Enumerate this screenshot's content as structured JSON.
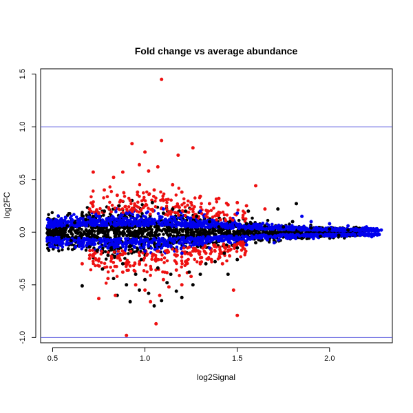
{
  "chart_data": {
    "type": "scatter",
    "title": "Fold change vs average abundance",
    "xlabel": "log2Signal",
    "ylabel": "log2FC",
    "xlim": [
      0.435,
      2.34
    ],
    "ylim": [
      -1.05,
      1.55
    ],
    "x_ticks": [
      0.5,
      1.0,
      1.5,
      2.0
    ],
    "x_tick_labels": [
      "0.5",
      "1.0",
      "1.5",
      "2.0"
    ],
    "y_ticks": [
      -1.0,
      -0.5,
      0.0,
      0.5,
      1.0,
      1.5
    ],
    "y_tick_labels": [
      "-1.0",
      "-0.5",
      "0.0",
      "0.5",
      "1.0",
      "1.5"
    ],
    "grid": false,
    "reference_lines": [
      {
        "y": 1.0,
        "color": "#5555dd"
      },
      {
        "y": -1.0,
        "color": "#5555dd"
      }
    ],
    "series": [
      {
        "color": "#000000",
        "points": [
          [
            0.48,
            0.01
          ],
          [
            0.5,
            -0.02
          ],
          [
            0.52,
            0.03
          ],
          [
            0.55,
            -0.05
          ],
          [
            0.58,
            0.06
          ],
          [
            0.6,
            -0.08
          ],
          [
            0.62,
            0.09
          ],
          [
            0.65,
            -0.1
          ],
          [
            0.66,
            -0.51
          ],
          [
            0.68,
            0.12
          ],
          [
            0.7,
            -0.14
          ],
          [
            0.72,
            0.15
          ],
          [
            0.74,
            -0.18
          ],
          [
            0.75,
            0.02
          ],
          [
            0.77,
            -0.35
          ],
          [
            0.78,
            0.2
          ],
          [
            0.8,
            -0.22
          ],
          [
            0.82,
            0.05
          ],
          [
            0.83,
            -0.44
          ],
          [
            0.85,
            -0.6
          ],
          [
            0.86,
            0.25
          ],
          [
            0.88,
            -0.3
          ],
          [
            0.9,
            -0.5
          ],
          [
            0.92,
            -0.66
          ],
          [
            0.93,
            0.3
          ],
          [
            0.95,
            -0.4
          ],
          [
            0.97,
            -0.55
          ],
          [
            0.98,
            -0.26
          ],
          [
            1.0,
            -0.45
          ],
          [
            1.02,
            -0.58
          ],
          [
            1.04,
            0.28
          ],
          [
            1.05,
            -0.7
          ],
          [
            1.07,
            -0.34
          ],
          [
            1.09,
            -0.65
          ],
          [
            1.1,
            0.18
          ],
          [
            1.12,
            -0.48
          ],
          [
            1.14,
            -0.4
          ],
          [
            1.15,
            0.22
          ],
          [
            1.17,
            -0.56
          ],
          [
            1.2,
            -0.62
          ],
          [
            1.22,
            0.2
          ],
          [
            1.24,
            -0.38
          ],
          [
            1.26,
            -0.5
          ],
          [
            1.28,
            0.15
          ],
          [
            1.3,
            -0.4
          ],
          [
            1.33,
            -0.3
          ],
          [
            1.35,
            0.1
          ],
          [
            1.38,
            -0.28
          ],
          [
            1.4,
            0.05
          ],
          [
            1.43,
            -0.2
          ],
          [
            1.46,
            0.1
          ],
          [
            1.5,
            -0.15
          ],
          [
            1.55,
            0.08
          ],
          [
            1.6,
            -0.1
          ],
          [
            1.65,
            0.06
          ],
          [
            1.7,
            -0.08
          ],
          [
            1.75,
            0.05
          ],
          [
            1.8,
            0.1
          ],
          [
            1.85,
            -0.06
          ],
          [
            1.9,
            0.04
          ],
          [
            1.95,
            -0.04
          ],
          [
            2.0,
            0.03
          ],
          [
            2.05,
            -0.03
          ],
          [
            2.1,
            0.02
          ],
          [
            1.56,
            0.2
          ],
          [
            1.72,
            0.22
          ],
          [
            1.82,
            0.27
          ],
          [
            1.45,
            -0.4
          ],
          [
            1.5,
            -0.26
          ]
        ]
      },
      {
        "color": "#ee1111",
        "points": [
          [
            1.09,
            1.45
          ],
          [
            0.93,
            0.84
          ],
          [
            1.09,
            0.87
          ],
          [
            1.26,
            0.8
          ],
          [
            1.0,
            0.76
          ],
          [
            1.18,
            0.73
          ],
          [
            0.97,
            0.64
          ],
          [
            1.07,
            0.62
          ],
          [
            1.02,
            0.58
          ],
          [
            0.88,
            0.57
          ],
          [
            0.72,
            0.57
          ],
          [
            0.83,
            0.52
          ],
          [
            1.15,
            0.45
          ],
          [
            1.6,
            0.44
          ],
          [
            0.78,
            0.4
          ],
          [
            0.96,
            0.38
          ],
          [
            1.05,
            0.4
          ],
          [
            1.2,
            0.38
          ],
          [
            1.3,
            0.34
          ],
          [
            1.4,
            0.32
          ],
          [
            0.85,
            0.35
          ],
          [
            1.1,
            0.3
          ],
          [
            0.92,
            0.3
          ],
          [
            1.25,
            0.28
          ],
          [
            1.35,
            0.27
          ],
          [
            1.45,
            0.26
          ],
          [
            1.5,
            0.28
          ],
          [
            1.55,
            0.25
          ],
          [
            0.7,
            0.22
          ],
          [
            0.75,
            0.18
          ],
          [
            1.65,
            0.22
          ],
          [
            1.0,
            0.25
          ],
          [
            0.73,
            -0.2
          ],
          [
            0.75,
            -0.63
          ],
          [
            0.84,
            -0.6
          ],
          [
            0.8,
            -0.44
          ],
          [
            0.9,
            -0.98
          ],
          [
            1.06,
            -0.87
          ],
          [
            1.5,
            -0.79
          ],
          [
            0.95,
            -0.5
          ],
          [
            1.0,
            -0.55
          ],
          [
            1.03,
            -0.66
          ],
          [
            1.08,
            -0.6
          ],
          [
            1.1,
            -0.45
          ],
          [
            1.13,
            -0.52
          ],
          [
            1.2,
            -0.5
          ],
          [
            1.25,
            -0.42
          ],
          [
            0.88,
            -0.38
          ],
          [
            0.92,
            -0.32
          ],
          [
            0.97,
            -0.3
          ],
          [
            1.17,
            -0.36
          ],
          [
            1.3,
            -0.3
          ],
          [
            1.36,
            -0.26
          ],
          [
            1.42,
            -0.3
          ],
          [
            1.48,
            -0.55
          ],
          [
            0.7,
            -0.25
          ],
          [
            0.66,
            -0.3
          ],
          [
            0.82,
            -0.25
          ],
          [
            1.22,
            -0.28
          ],
          [
            1.33,
            -0.2
          ]
        ]
      },
      {
        "color": "#0000ee",
        "points": [
          [
            2.25,
            0.03
          ],
          [
            2.2,
            0.05
          ],
          [
            2.1,
            0.06
          ],
          [
            2.0,
            0.08
          ],
          [
            1.9,
            0.1
          ],
          [
            1.85,
            0.15
          ],
          [
            1.7,
            -0.1
          ],
          [
            1.55,
            -0.12
          ],
          [
            1.35,
            -0.15
          ],
          [
            1.2,
            -0.2
          ],
          [
            1.0,
            -0.18
          ],
          [
            0.8,
            -0.15
          ],
          [
            0.65,
            -0.1
          ],
          [
            0.55,
            0.08
          ],
          [
            1.5,
            0.18
          ],
          [
            1.3,
            0.2
          ],
          [
            1.1,
            0.22
          ],
          [
            0.9,
            0.18
          ],
          [
            0.7,
            0.14
          ],
          [
            2.28,
            0.02
          ]
        ]
      }
    ]
  }
}
